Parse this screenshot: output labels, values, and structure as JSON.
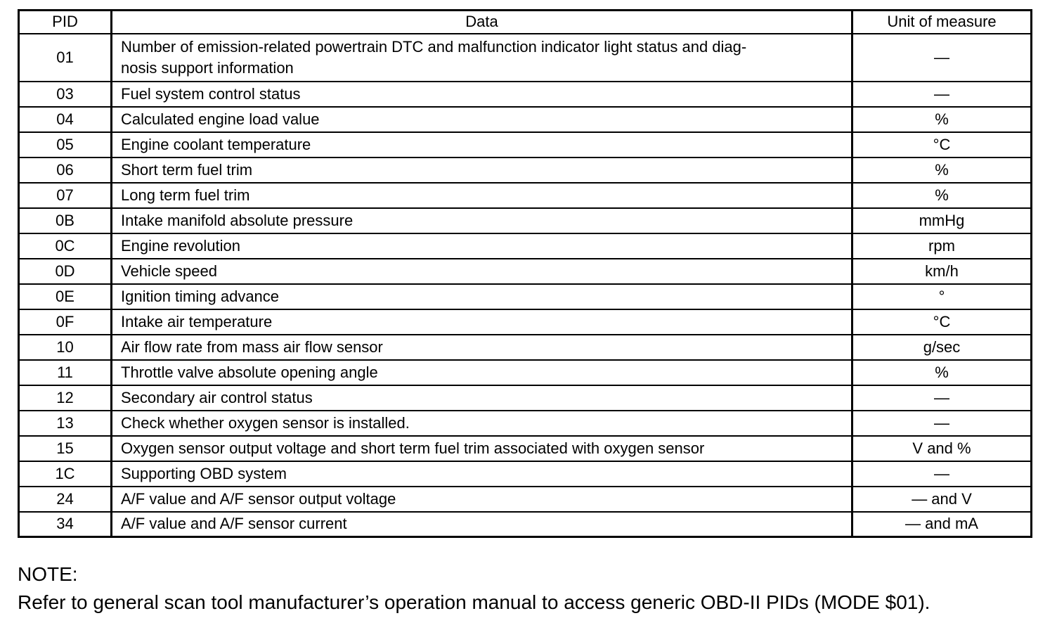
{
  "table": {
    "headers": {
      "pid": "PID",
      "data": "Data",
      "unit": "Unit of measure"
    },
    "rows": [
      {
        "pid": "01",
        "data": "Number of emission-related powertrain DTC and malfunction indicator light status and diag-\nnosis support information",
        "unit": "—"
      },
      {
        "pid": "03",
        "data": "Fuel system control status",
        "unit": "—"
      },
      {
        "pid": "04",
        "data": "Calculated engine load value",
        "unit": "%"
      },
      {
        "pid": "05",
        "data": "Engine coolant temperature",
        "unit": "°C"
      },
      {
        "pid": "06",
        "data": "Short term fuel trim",
        "unit": "%"
      },
      {
        "pid": "07",
        "data": "Long term fuel trim",
        "unit": "%"
      },
      {
        "pid": "0B",
        "data": "Intake manifold absolute pressure",
        "unit": "mmHg"
      },
      {
        "pid": "0C",
        "data": "Engine revolution",
        "unit": "rpm"
      },
      {
        "pid": "0D",
        "data": "Vehicle speed",
        "unit": "km/h"
      },
      {
        "pid": "0E",
        "data": "Ignition timing advance",
        "unit": "°"
      },
      {
        "pid": "0F",
        "data": "Intake air temperature",
        "unit": "°C"
      },
      {
        "pid": "10",
        "data": "Air flow rate from mass air flow sensor",
        "unit": "g/sec"
      },
      {
        "pid": "11",
        "data": "Throttle valve absolute opening angle",
        "unit": "%"
      },
      {
        "pid": "12",
        "data": "Secondary air control status",
        "unit": "—"
      },
      {
        "pid": "13",
        "data": "Check whether oxygen sensor is installed.",
        "unit": "—"
      },
      {
        "pid": "15",
        "data": "Oxygen sensor output voltage and short term fuel trim associated with oxygen sensor",
        "unit": "V and %"
      },
      {
        "pid": "1C",
        "data": "Supporting OBD system",
        "unit": "—"
      },
      {
        "pid": "24",
        "data": "A/F value and A/F sensor output voltage",
        "unit": "— and V"
      },
      {
        "pid": "34",
        "data": "A/F value and A/F sensor current",
        "unit": "— and mA"
      }
    ]
  },
  "note": {
    "label": "NOTE:",
    "text": "Refer to general scan tool manufacturer’s operation manual to access generic OBD-II PIDs (MODE $01)."
  },
  "colors": {
    "text": "#000000",
    "background": "#ffffff",
    "border": "#000000"
  }
}
